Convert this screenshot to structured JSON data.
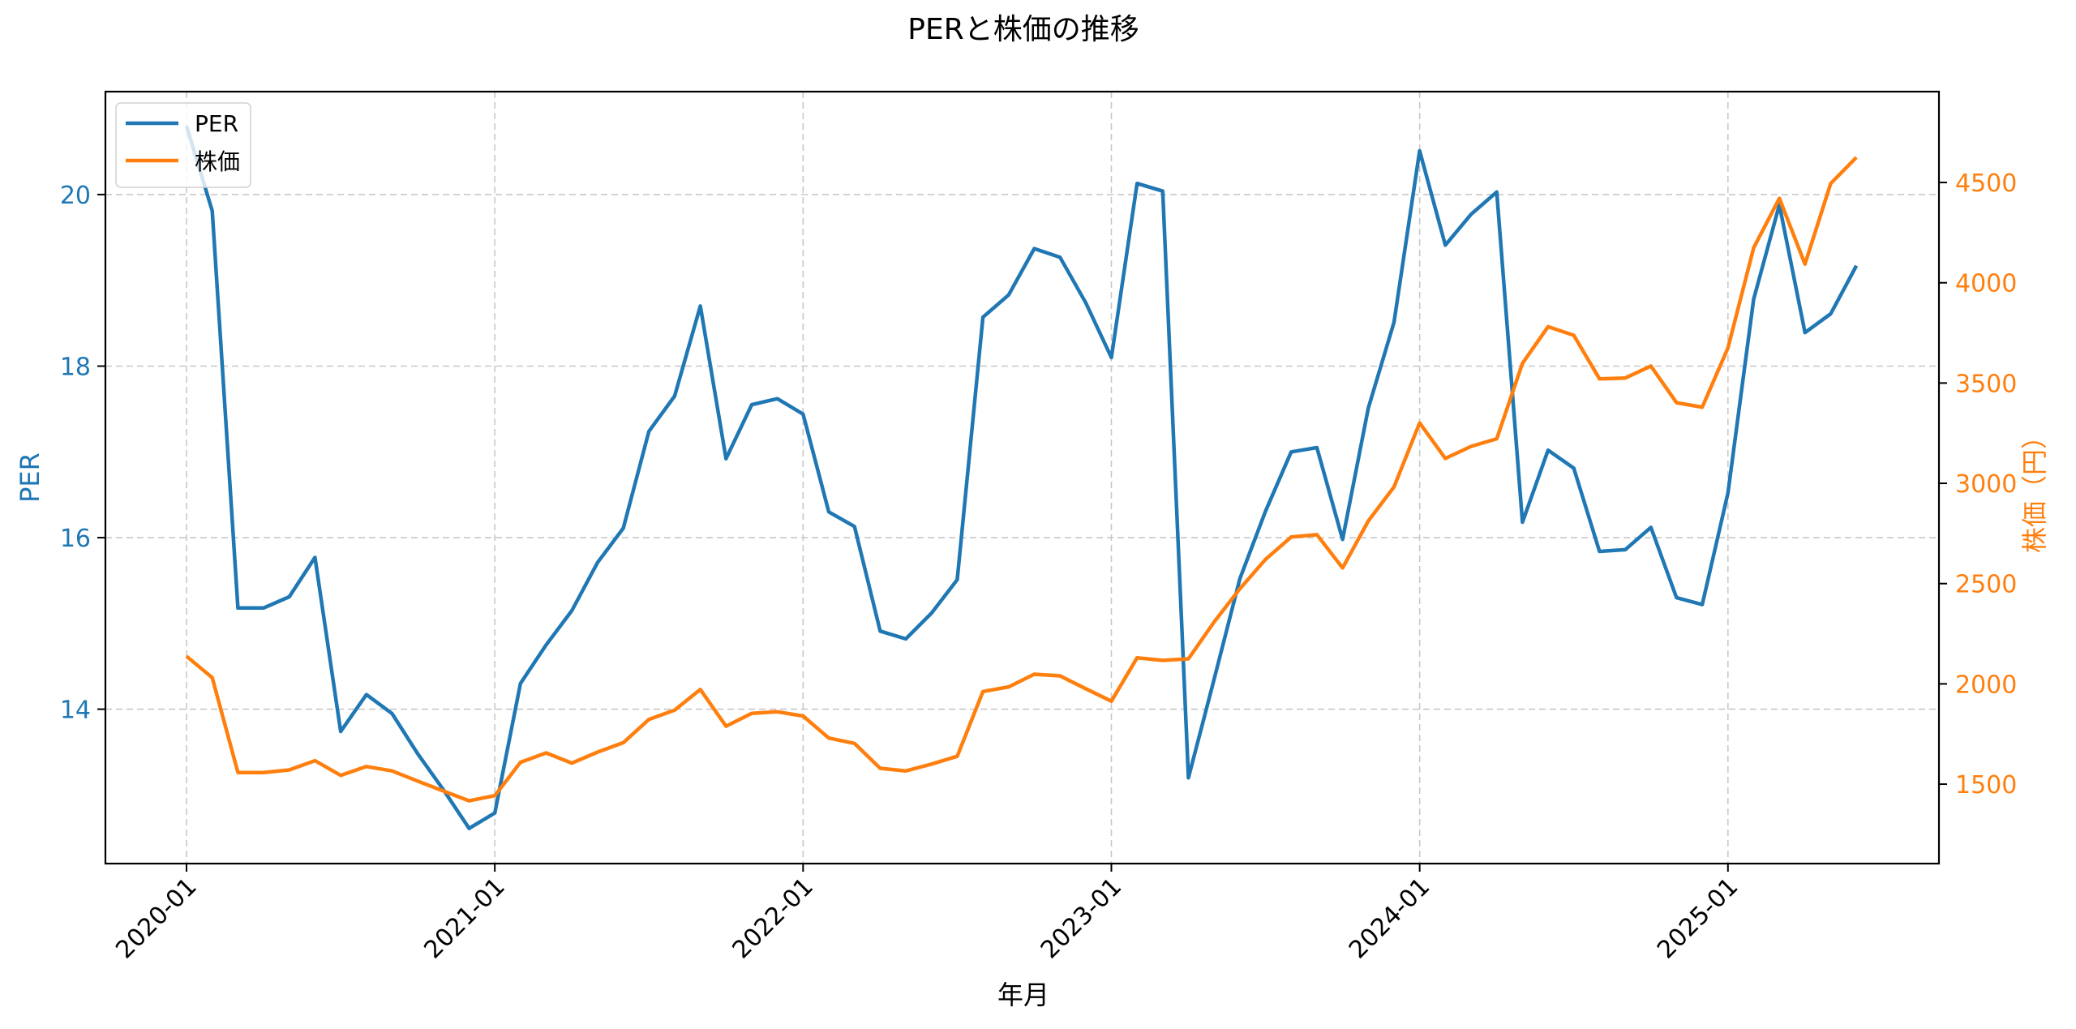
{
  "chart_data": {
    "type": "line",
    "title": "PERと株価の推移",
    "xlabel": "年月",
    "ylabel": "PER",
    "ylabel_right": "株価（円）",
    "x": [
      "2020-01",
      "2020-02",
      "2020-03",
      "2020-04",
      "2020-05",
      "2020-06",
      "2020-07",
      "2020-08",
      "2020-09",
      "2020-10",
      "2020-11",
      "2020-12",
      "2021-01",
      "2021-02",
      "2021-03",
      "2021-04",
      "2021-05",
      "2021-06",
      "2021-07",
      "2021-08",
      "2021-09",
      "2021-10",
      "2021-11",
      "2021-12",
      "2022-01",
      "2022-02",
      "2022-03",
      "2022-04",
      "2022-05",
      "2022-06",
      "2022-07",
      "2022-08",
      "2022-09",
      "2022-10",
      "2022-11",
      "2022-12",
      "2023-01",
      "2023-02",
      "2023-03",
      "2023-04",
      "2023-05",
      "2023-06",
      "2023-07",
      "2023-08",
      "2023-09",
      "2023-10",
      "2023-11",
      "2023-12",
      "2024-01",
      "2024-02",
      "2024-03",
      "2024-04",
      "2024-05",
      "2024-06",
      "2024-07",
      "2024-08",
      "2024-09",
      "2024-10",
      "2024-11",
      "2024-12",
      "2025-01",
      "2025-02",
      "2025-03",
      "2025-04",
      "2025-05",
      "2025-06"
    ],
    "x_ticks": [
      "2020-01",
      "2021-01",
      "2022-01",
      "2023-01",
      "2024-01",
      "2025-01"
    ],
    "series": [
      {
        "name": "PER",
        "axis": "left",
        "color": "#1f77b4",
        "values": [
          20.8,
          19.81,
          15.18,
          15.18,
          15.31,
          15.77,
          13.74,
          14.17,
          13.95,
          13.48,
          13.06,
          12.61,
          12.79,
          14.3,
          14.75,
          15.15,
          15.71,
          16.11,
          17.24,
          17.65,
          18.7,
          16.92,
          17.55,
          17.62,
          17.44,
          16.3,
          16.13,
          14.91,
          14.82,
          15.12,
          15.51,
          18.57,
          18.83,
          19.37,
          19.27,
          18.74,
          18.1,
          20.13,
          20.04,
          13.2,
          14.35,
          15.52,
          16.31,
          17.0,
          17.05,
          15.98,
          17.51,
          18.51,
          20.51,
          19.41,
          19.77,
          20.03,
          16.18,
          17.02,
          16.81,
          15.84,
          15.86,
          16.12,
          15.3,
          15.22,
          16.52,
          18.78,
          19.88,
          18.39,
          18.61,
          19.17
        ]
      },
      {
        "name": "株価",
        "axis": "right",
        "color": "#ff7f0e",
        "values": [
          2138,
          2031,
          1558,
          1558,
          1571,
          1617,
          1544,
          1588,
          1566,
          1515,
          1466,
          1417,
          1443,
          1609,
          1656,
          1605,
          1660,
          1707,
          1823,
          1869,
          1972,
          1789,
          1853,
          1861,
          1840,
          1730,
          1703,
          1579,
          1566,
          1600,
          1639,
          1962,
          1985,
          2048,
          2040,
          1976,
          1914,
          2130,
          2117,
          2125,
          2309,
          2474,
          2621,
          2732,
          2744,
          2578,
          2812,
          2982,
          3301,
          3124,
          3184,
          3222,
          3598,
          3781,
          3738,
          3521,
          3525,
          3585,
          3402,
          3380,
          3675,
          4174,
          4421,
          4093,
          4495,
          4625
        ]
      }
    ],
    "ylim": [
      12.2,
      21.2
    ],
    "yticks": [
      14,
      16,
      18,
      20
    ],
    "ylim_right": [
      1104,
      4953
    ],
    "yticks_right": [
      1500,
      2000,
      2500,
      3000,
      3500,
      4000,
      4500
    ],
    "grid": true,
    "legend_position": "upper left"
  },
  "legend": {
    "items": [
      {
        "label": "PER",
        "color": "#1f77b4"
      },
      {
        "label": "株価",
        "color": "#ff7f0e"
      }
    ]
  },
  "colors": {
    "per": "#1f77b4",
    "price": "#ff7f0e",
    "grid": "#c8c8c8",
    "axis": "#000000"
  }
}
